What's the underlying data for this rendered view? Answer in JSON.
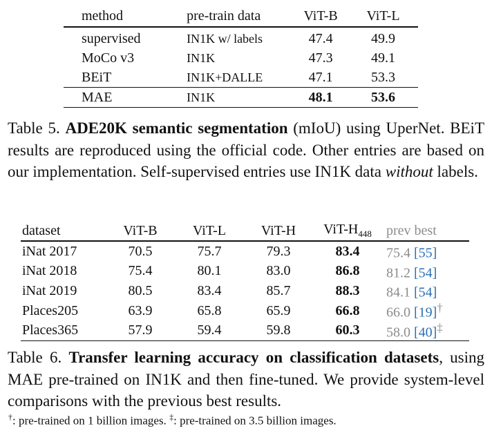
{
  "table5": {
    "headers": [
      "method",
      "pre-train data",
      "ViT-B",
      "ViT-L"
    ],
    "rows": [
      {
        "method": "supervised",
        "data": "IN1K w/ labels",
        "vitb": "47.4",
        "vitl": "49.9"
      },
      {
        "method": "MoCo v3",
        "data": "IN1K",
        "vitb": "47.3",
        "vitl": "49.1"
      },
      {
        "method": "BEiT",
        "data": "IN1K+DALLE",
        "vitb": "47.1",
        "vitl": "53.3"
      },
      {
        "method": "MAE",
        "data": "IN1K",
        "vitb": "48.1",
        "vitl": "53.6"
      }
    ],
    "caption": {
      "label": "Table 5.",
      "bold": "ADE20K semantic segmentation",
      "rest_1": "(mIoU) using UperNet. BEiT results are reproduced using the official code. Other entries are based on our implementation. Self-supervised entries use IN1K data",
      "italic": "without",
      "rest_2": "labels."
    }
  },
  "table6": {
    "headers": {
      "dataset": "dataset",
      "vitb": "ViT-B",
      "vitl": "ViT-L",
      "vith": "ViT-H",
      "vith448_main": "ViT-H",
      "vith448_sub": "448",
      "prev": "prev best"
    },
    "rows": [
      {
        "dataset": "iNat 2017",
        "vitb": "70.5",
        "vitl": "75.7",
        "vith": "79.3",
        "vith448": "83.4",
        "prev": "75.4",
        "ref": "55",
        "mark": ""
      },
      {
        "dataset": "iNat 2018",
        "vitb": "75.4",
        "vitl": "80.1",
        "vith": "83.0",
        "vith448": "86.8",
        "prev": "81.2",
        "ref": "54",
        "mark": ""
      },
      {
        "dataset": "iNat 2019",
        "vitb": "80.5",
        "vitl": "83.4",
        "vith": "85.7",
        "vith448": "88.3",
        "prev": "84.1",
        "ref": "54",
        "mark": ""
      },
      {
        "dataset": "Places205",
        "vitb": "63.9",
        "vitl": "65.8",
        "vith": "65.9",
        "vith448": "66.8",
        "prev": "66.0",
        "ref": "19",
        "mark": "†"
      },
      {
        "dataset": "Places365",
        "vitb": "57.9",
        "vitl": "59.4",
        "vith": "59.8",
        "vith448": "60.3",
        "prev": "58.0",
        "ref": "40",
        "mark": "‡"
      }
    ],
    "caption": {
      "label": "Table 6.",
      "bold": "Transfer learning accuracy on classification datasets",
      "rest": ", using MAE pre-trained on IN1K and then fine-tuned. We provide system-level comparisons with the previous best results."
    },
    "footnote": {
      "dagger": "†",
      "dagger_text": ": pre-trained on 1 billion images.",
      "ddagger": "‡",
      "ddagger_text": ": pre-trained on 3.5 billion images."
    }
  },
  "colors": {
    "text": "#111111",
    "grey": "#8c8c8c",
    "citation": "#2a6fb5"
  }
}
